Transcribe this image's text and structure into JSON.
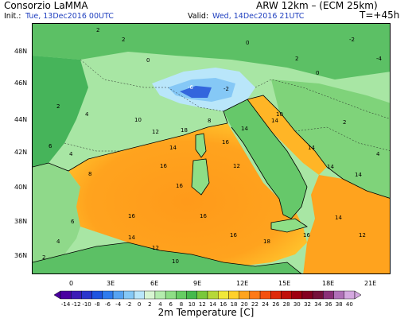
{
  "header": {
    "org": "Consorzio LaMMA",
    "init_label": "Init.:",
    "init_value": "Tue, 13Dec2016 00UTC",
    "model": "ARW 12km – (ECM 25km)",
    "valid_label": "Valid:",
    "valid_value": "Wed, 14Dec2016 21UTC",
    "lead_time": "T=+45h"
  },
  "map": {
    "lat_labels": [
      "48N",
      "46N",
      "44N",
      "42N",
      "40N",
      "38N",
      "36N"
    ],
    "lon_labels": [
      "0",
      "3E",
      "6E",
      "9E",
      "12E",
      "15E",
      "18E",
      "21E"
    ],
    "contour_labels": [
      "2",
      "2",
      "0",
      "0",
      "2",
      "-2",
      "2",
      "4",
      "6",
      "4",
      "8",
      "10",
      "12",
      "14",
      "16",
      "18",
      "16",
      "14",
      "12",
      "10",
      "8",
      "6",
      "4",
      "2",
      "16",
      "16",
      "16",
      "14",
      "12",
      "10",
      "18",
      "16",
      "14",
      "12",
      "16",
      "-4",
      "-6",
      "-2",
      "14",
      "14",
      "14",
      "14",
      "2",
      "0",
      "4"
    ],
    "colors": {
      "sea_warm": "#ffa31e",
      "sea_mid": "#ffc52d",
      "land_green": "#66c86a",
      "land_light": "#a8e6a4",
      "cold_blue": "#3366dd",
      "ocean_green": "#46b45a"
    }
  },
  "colorbar": {
    "ticks": [
      "-14",
      "-12",
      "-10",
      "-8",
      "-6",
      "-4",
      "-2",
      "0",
      "2",
      "4",
      "6",
      "8",
      "10",
      "12",
      "14",
      "16",
      "18",
      "20",
      "22",
      "24",
      "26",
      "28",
      "30",
      "32",
      "34",
      "36",
      "38",
      "40"
    ],
    "colors": [
      "#4a00a0",
      "#3b1bb6",
      "#2a36cc",
      "#1f55e0",
      "#2e7bee",
      "#56a3f2",
      "#85c8f6",
      "#b9e6fa",
      "#d8f5d2",
      "#b4ecae",
      "#8ede86",
      "#66cd63",
      "#46b94c",
      "#79c83b",
      "#b6d83a",
      "#f0e83a",
      "#ffd02a",
      "#ffa41e",
      "#ff7a16",
      "#f4500f",
      "#de2a0a",
      "#c0100a",
      "#9e0010",
      "#830020",
      "#74103a",
      "#8a3078",
      "#b070b8",
      "#d4a8e0"
    ],
    "title": "2m Temperature [C]"
  }
}
